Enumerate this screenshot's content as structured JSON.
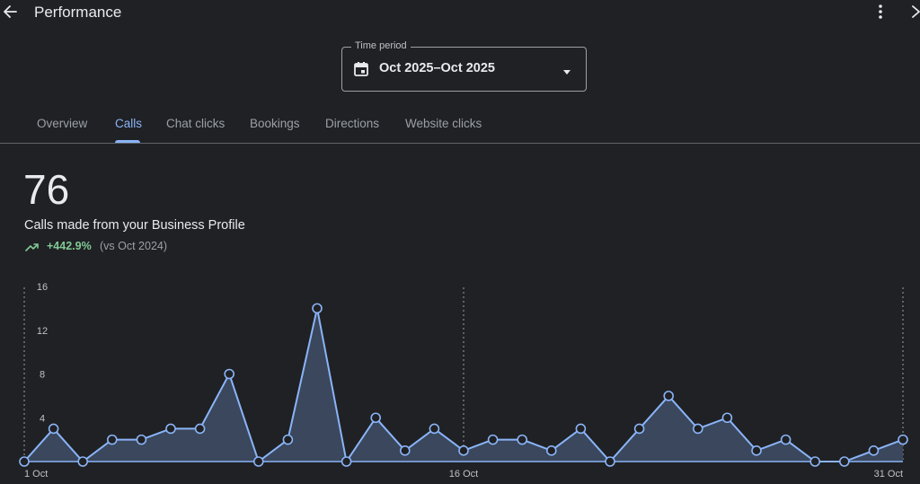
{
  "header": {
    "title": "Performance"
  },
  "time_period": {
    "legend": "Time period",
    "value": "Oct 2025–Oct 2025"
  },
  "tabs": [
    {
      "label": "Overview",
      "active": false
    },
    {
      "label": "Calls",
      "active": true
    },
    {
      "label": "Chat clicks",
      "active": false
    },
    {
      "label": "Bookings",
      "active": false
    },
    {
      "label": "Directions",
      "active": false
    },
    {
      "label": "Website clicks",
      "active": false
    }
  ],
  "metric": {
    "value": "76",
    "description": "Calls made from your Business Profile",
    "change": "+442.9%",
    "comparison": "(vs Oct 2024)"
  },
  "colors": {
    "accent": "#8ab4f8",
    "positive": "#81c995",
    "background": "#202124"
  },
  "icons": [
    "back-arrow-icon",
    "more-vert-icon",
    "close-icon",
    "calendar-icon",
    "dropdown-arrow-icon",
    "trending-up-icon"
  ],
  "chart_data": {
    "type": "area",
    "x": [
      1,
      2,
      3,
      4,
      5,
      6,
      7,
      8,
      9,
      10,
      11,
      12,
      13,
      14,
      15,
      16,
      17,
      18,
      19,
      20,
      21,
      22,
      23,
      24,
      25,
      26,
      27,
      28,
      29,
      30,
      31
    ],
    "x_tick_labels": [
      {
        "x": 1,
        "label": "1 Oct"
      },
      {
        "x": 16,
        "label": "16 Oct"
      },
      {
        "x": 31,
        "label": "31 Oct"
      }
    ],
    "series": [
      {
        "values": [
          0,
          3,
          0,
          2,
          2,
          3,
          3,
          8,
          0,
          2,
          14,
          0,
          4,
          1,
          3,
          1,
          2,
          2,
          1,
          3,
          0,
          3,
          6,
          3,
          4,
          1,
          2,
          0,
          0,
          1,
          2
        ]
      }
    ],
    "ylim": [
      0,
      16
    ],
    "yticks": [
      4,
      8,
      12,
      16
    ],
    "vertical_gridlines_at": [
      1,
      16,
      31
    ],
    "grid": "vertical dotted"
  }
}
